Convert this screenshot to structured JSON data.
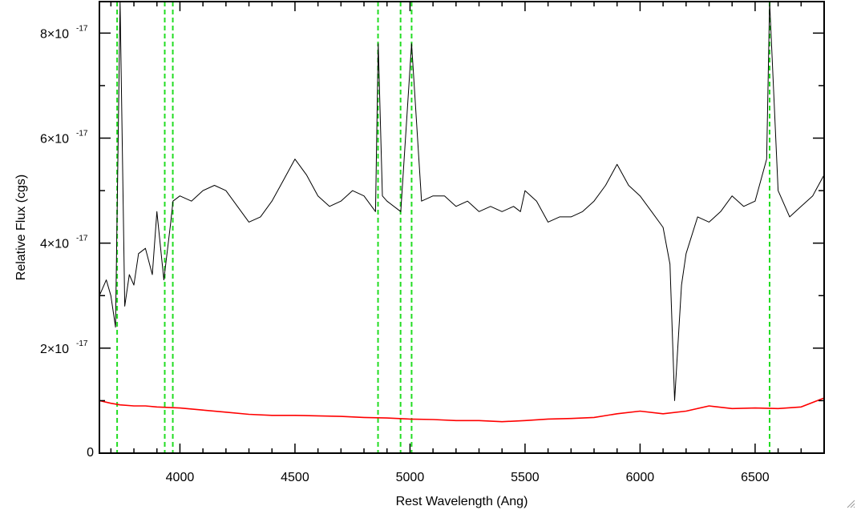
{
  "chart_data": {
    "type": "line",
    "xlabel": "Rest Wavelength (Ang)",
    "ylabel": "Relative Flux (cgs)",
    "xlim": [
      3650,
      6800
    ],
    "ylim": [
      0,
      8.6e-17
    ],
    "x_ticks": [
      {
        "value": 4000,
        "label": "4000"
      },
      {
        "value": 4500,
        "label": "4500"
      },
      {
        "value": 5000,
        "label": "5000"
      },
      {
        "value": 5500,
        "label": "5500"
      },
      {
        "value": 6000,
        "label": "6000"
      },
      {
        "value": 6500,
        "label": "6500"
      }
    ],
    "y_ticks": [
      {
        "value": 0,
        "mantissa": "0",
        "exponent": ""
      },
      {
        "value": 2e-17,
        "mantissa": "2×10",
        "exponent": "-17"
      },
      {
        "value": 4e-17,
        "mantissa": "4×10",
        "exponent": "-17"
      },
      {
        "value": 6e-17,
        "mantissa": "6×10",
        "exponent": "-17"
      },
      {
        "value": 8e-17,
        "mantissa": "8×10",
        "exponent": "-17"
      }
    ],
    "series": [
      {
        "color": "#000000",
        "x": [
          3650,
          3680,
          3700,
          3720,
          3740,
          3760,
          3780,
          3800,
          3820,
          3850,
          3880,
          3900,
          3930,
          3960,
          3970,
          4000,
          4050,
          4100,
          4150,
          4200,
          4250,
          4300,
          4350,
          4400,
          4450,
          4500,
          4550,
          4600,
          4650,
          4700,
          4750,
          4800,
          4850,
          4862,
          4880,
          4900,
          4960,
          5007,
          5050,
          5100,
          5150,
          5200,
          5250,
          5300,
          5350,
          5400,
          5450,
          5480,
          5500,
          5550,
          5600,
          5650,
          5700,
          5750,
          5800,
          5850,
          5900,
          5950,
          6000,
          6050,
          6100,
          6130,
          6150,
          6180,
          6200,
          6250,
          6300,
          6350,
          6400,
          6450,
          6500,
          6550,
          6563,
          6600,
          6650,
          6700,
          6750,
          6800
        ],
        "y": [
          3e-17,
          3.3e-17,
          3e-17,
          2.4e-17,
          8.6e-17,
          2.8e-17,
          3.4e-17,
          3.2e-17,
          3.8e-17,
          3.9e-17,
          3.4e-17,
          4.6e-17,
          3.3e-17,
          4.4e-17,
          4.8e-17,
          4.9e-17,
          4.8e-17,
          5e-17,
          5.1e-17,
          5e-17,
          4.7e-17,
          4.4e-17,
          4.5e-17,
          4.8e-17,
          5.2e-17,
          5.6e-17,
          5.3e-17,
          4.9e-17,
          4.7e-17,
          4.8e-17,
          5e-17,
          4.9e-17,
          4.6e-17,
          7.8e-17,
          4.9e-17,
          4.8e-17,
          4.6e-17,
          7.8e-17,
          4.8e-17,
          4.9e-17,
          4.9e-17,
          4.7e-17,
          4.8e-17,
          4.6e-17,
          4.7e-17,
          4.6e-17,
          4.7e-17,
          4.6e-17,
          5e-17,
          4.8e-17,
          4.4e-17,
          4.5e-17,
          4.5e-17,
          4.6e-17,
          4.8e-17,
          5.1e-17,
          5.5e-17,
          5.1e-17,
          4.9e-17,
          4.6e-17,
          4.3e-17,
          3.6e-17,
          1e-17,
          3.2e-17,
          3.8e-17,
          4.5e-17,
          4.4e-17,
          4.6e-17,
          4.9e-17,
          4.7e-17,
          4.8e-17,
          5.6e-17,
          8.6e-17,
          5e-17,
          4.5e-17,
          4.7e-17,
          4.9e-17,
          5.3e-17
        ]
      },
      {
        "color": "#ff0000",
        "x": [
          3650,
          3700,
          3740,
          3800,
          3850,
          3900,
          4000,
          4100,
          4200,
          4300,
          4400,
          4500,
          4600,
          4700,
          4800,
          4900,
          5000,
          5100,
          5200,
          5300,
          5400,
          5500,
          5600,
          5700,
          5800,
          5900,
          6000,
          6100,
          6200,
          6300,
          6400,
          6500,
          6600,
          6700,
          6800
        ],
        "y": [
          1e-17,
          9.5e-18,
          9.2e-18,
          9e-18,
          9e-18,
          8.8e-18,
          8.6e-18,
          8.2e-18,
          7.8e-18,
          7.4e-18,
          7.2e-18,
          7.2e-18,
          7.1e-18,
          7e-18,
          6.8e-18,
          6.7e-18,
          6.5e-18,
          6.4e-18,
          6.2e-18,
          6.2e-18,
          6e-18,
          6.2e-18,
          6.5e-18,
          6.6e-18,
          6.8e-18,
          7.5e-18,
          8e-18,
          7.5e-18,
          8e-18,
          9e-18,
          8.5e-18,
          8.6e-18,
          8.5e-18,
          8.8e-18,
          1.05e-17
        ]
      }
    ],
    "reference_lines": [
      3727,
      3934,
      3969,
      4861,
      4959,
      5007,
      6563
    ],
    "reference_line_color": "#22dd22",
    "grid": false
  }
}
